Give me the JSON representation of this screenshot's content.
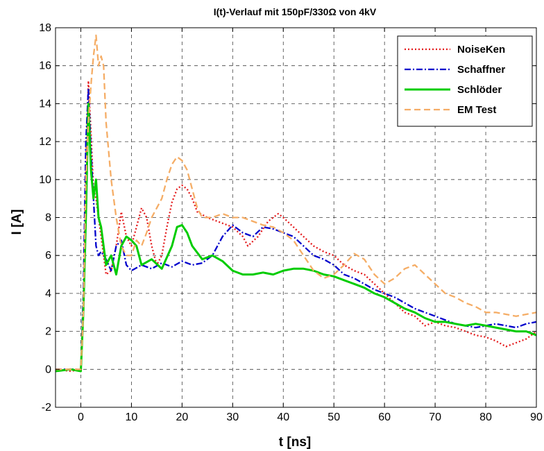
{
  "chart_data": {
    "type": "line",
    "title": "I(t)-Verlauf mit 150pF/330Ω  von 4kV",
    "xlabel": "t [ns]",
    "ylabel": "I [A]",
    "xlim": [
      -5,
      90
    ],
    "ylim": [
      -2,
      18
    ],
    "xticks": [
      0,
      10,
      20,
      30,
      40,
      50,
      60,
      70,
      80,
      90
    ],
    "yticks": [
      -2,
      0,
      2,
      4,
      6,
      8,
      10,
      12,
      14,
      16,
      18
    ],
    "grid": true,
    "legend_position": "top-right",
    "series": [
      {
        "name": "NoiseKen",
        "color": "#e41a1c",
        "style": "dotted",
        "points": [
          [
            -5,
            0
          ],
          [
            -2,
            -0.1
          ],
          [
            0,
            0
          ],
          [
            0.5,
            3
          ],
          [
            1,
            11
          ],
          [
            1.5,
            15.2
          ],
          [
            2,
            12.5
          ],
          [
            2.5,
            9.5
          ],
          [
            3,
            9
          ],
          [
            4,
            7
          ],
          [
            5,
            5
          ],
          [
            6,
            5.2
          ],
          [
            7,
            6.5
          ],
          [
            8,
            8.3
          ],
          [
            9,
            7
          ],
          [
            10,
            6.5
          ],
          [
            11,
            7.5
          ],
          [
            12,
            8.5
          ],
          [
            13,
            8
          ],
          [
            14,
            6.5
          ],
          [
            15,
            5.5
          ],
          [
            16,
            6
          ],
          [
            17,
            7.5
          ],
          [
            18,
            8.8
          ],
          [
            19,
            9.5
          ],
          [
            20,
            9.7
          ],
          [
            21,
            9.5
          ],
          [
            22,
            9
          ],
          [
            23,
            8.3
          ],
          [
            25,
            8
          ],
          [
            27,
            7.8
          ],
          [
            30,
            7.5
          ],
          [
            32,
            7
          ],
          [
            33,
            6.5
          ],
          [
            35,
            7
          ],
          [
            37,
            7.8
          ],
          [
            39,
            8.2
          ],
          [
            40,
            8
          ],
          [
            42,
            7.5
          ],
          [
            44,
            7
          ],
          [
            46,
            6.5
          ],
          [
            48,
            6.2
          ],
          [
            50,
            6
          ],
          [
            52,
            5.5
          ],
          [
            54,
            5.2
          ],
          [
            56,
            5
          ],
          [
            58,
            4.5
          ],
          [
            60,
            4
          ],
          [
            62,
            3.5
          ],
          [
            64,
            3
          ],
          [
            66,
            2.8
          ],
          [
            68,
            2.3
          ],
          [
            70,
            2.5
          ],
          [
            72,
            2.3
          ],
          [
            74,
            2.2
          ],
          [
            76,
            2
          ],
          [
            78,
            1.8
          ],
          [
            80,
            1.7
          ],
          [
            82,
            1.5
          ],
          [
            84,
            1.2
          ],
          [
            86,
            1.4
          ],
          [
            88,
            1.6
          ],
          [
            90,
            2
          ]
        ]
      },
      {
        "name": "Schaffner",
        "color": "#0000cc",
        "style": "dashdot",
        "points": [
          [
            -5,
            0
          ],
          [
            -2,
            0
          ],
          [
            0,
            0
          ],
          [
            0.5,
            4
          ],
          [
            1,
            12
          ],
          [
            1.5,
            14.8
          ],
          [
            2,
            11.5
          ],
          [
            2.5,
            9
          ],
          [
            3,
            6.5
          ],
          [
            3.5,
            6
          ],
          [
            4,
            6.2
          ],
          [
            5,
            5.8
          ],
          [
            6,
            5.2
          ],
          [
            7,
            6.5
          ],
          [
            8,
            6.8
          ],
          [
            9,
            5.5
          ],
          [
            10,
            5.2
          ],
          [
            12,
            5.5
          ],
          [
            14,
            5.3
          ],
          [
            16,
            5.6
          ],
          [
            18,
            5.4
          ],
          [
            20,
            5.7
          ],
          [
            22,
            5.5
          ],
          [
            24,
            5.6
          ],
          [
            26,
            6
          ],
          [
            28,
            7
          ],
          [
            30,
            7.6
          ],
          [
            32,
            7.2
          ],
          [
            34,
            7
          ],
          [
            36,
            7.5
          ],
          [
            38,
            7.4
          ],
          [
            40,
            7.2
          ],
          [
            42,
            7
          ],
          [
            44,
            6.5
          ],
          [
            46,
            6
          ],
          [
            48,
            5.8
          ],
          [
            50,
            5.5
          ],
          [
            52,
            5
          ],
          [
            54,
            4.8
          ],
          [
            56,
            4.5
          ],
          [
            58,
            4.2
          ],
          [
            60,
            4
          ],
          [
            62,
            3.8
          ],
          [
            64,
            3.5
          ],
          [
            66,
            3.2
          ],
          [
            68,
            3
          ],
          [
            70,
            2.8
          ],
          [
            72,
            2.6
          ],
          [
            74,
            2.4
          ],
          [
            76,
            2.3
          ],
          [
            78,
            2.2
          ],
          [
            80,
            2.3
          ],
          [
            82,
            2.4
          ],
          [
            84,
            2.3
          ],
          [
            86,
            2.2
          ],
          [
            88,
            2.4
          ],
          [
            90,
            2.5
          ]
        ]
      },
      {
        "name": "Schlöder",
        "color": "#00cc00",
        "style": "solid",
        "points": [
          [
            -5,
            -0.1
          ],
          [
            -2,
            0
          ],
          [
            0,
            -0.1
          ],
          [
            0.5,
            3
          ],
          [
            1,
            8
          ],
          [
            1.5,
            14
          ],
          [
            2,
            10.5
          ],
          [
            2.5,
            9
          ],
          [
            3,
            10
          ],
          [
            3.5,
            8
          ],
          [
            4,
            7.5
          ],
          [
            5,
            5.5
          ],
          [
            6,
            6
          ],
          [
            7,
            5
          ],
          [
            8,
            6.5
          ],
          [
            9,
            7
          ],
          [
            10,
            6.8
          ],
          [
            11,
            6.5
          ],
          [
            12,
            5.5
          ],
          [
            14,
            5.8
          ],
          [
            16,
            5.3
          ],
          [
            18,
            6.5
          ],
          [
            19,
            7.5
          ],
          [
            20,
            7.6
          ],
          [
            21,
            7.2
          ],
          [
            22,
            6.5
          ],
          [
            24,
            5.8
          ],
          [
            26,
            6
          ],
          [
            28,
            5.7
          ],
          [
            30,
            5.2
          ],
          [
            32,
            5
          ],
          [
            34,
            5
          ],
          [
            36,
            5.1
          ],
          [
            38,
            5
          ],
          [
            40,
            5.2
          ],
          [
            42,
            5.3
          ],
          [
            44,
            5.3
          ],
          [
            46,
            5.2
          ],
          [
            48,
            5
          ],
          [
            50,
            4.9
          ],
          [
            52,
            4.7
          ],
          [
            54,
            4.5
          ],
          [
            56,
            4.3
          ],
          [
            58,
            4
          ],
          [
            60,
            3.8
          ],
          [
            62,
            3.5
          ],
          [
            64,
            3.2
          ],
          [
            66,
            3
          ],
          [
            68,
            2.7
          ],
          [
            70,
            2.5
          ],
          [
            72,
            2.5
          ],
          [
            74,
            2.4
          ],
          [
            76,
            2.3
          ],
          [
            78,
            2.4
          ],
          [
            80,
            2.3
          ],
          [
            82,
            2.2
          ],
          [
            84,
            2.1
          ],
          [
            86,
            2
          ],
          [
            88,
            2
          ],
          [
            90,
            1.8
          ]
        ]
      },
      {
        "name": "EM Test",
        "color": "#f5ad66",
        "style": "dashed",
        "points": [
          [
            -5,
            0
          ],
          [
            -2,
            0
          ],
          [
            0,
            0
          ],
          [
            0.5,
            3
          ],
          [
            1,
            10
          ],
          [
            1.5,
            13
          ],
          [
            2,
            15
          ],
          [
            2.5,
            16.5
          ],
          [
            3,
            17.6
          ],
          [
            3.5,
            16
          ],
          [
            4,
            16.5
          ],
          [
            4.5,
            16
          ],
          [
            5,
            13
          ],
          [
            6,
            10
          ],
          [
            7,
            8
          ],
          [
            8,
            6.5
          ],
          [
            9,
            6
          ],
          [
            10,
            6
          ],
          [
            11,
            6.8
          ],
          [
            12,
            6.5
          ],
          [
            13,
            7.2
          ],
          [
            14,
            8
          ],
          [
            15,
            8.5
          ],
          [
            16,
            9
          ],
          [
            17,
            10
          ],
          [
            18,
            10.8
          ],
          [
            19,
            11.2
          ],
          [
            20,
            11
          ],
          [
            21,
            10.5
          ],
          [
            22,
            9.5
          ],
          [
            23,
            8.5
          ],
          [
            24,
            8
          ],
          [
            26,
            8
          ],
          [
            28,
            8.2
          ],
          [
            30,
            8
          ],
          [
            32,
            8
          ],
          [
            34,
            7.8
          ],
          [
            36,
            7.6
          ],
          [
            38,
            7.5
          ],
          [
            40,
            7.2
          ],
          [
            42,
            6.8
          ],
          [
            44,
            6
          ],
          [
            46,
            5.2
          ],
          [
            48,
            4.8
          ],
          [
            50,
            5
          ],
          [
            52,
            5.5
          ],
          [
            54,
            6.1
          ],
          [
            56,
            5.8
          ],
          [
            58,
            5
          ],
          [
            60,
            4.5
          ],
          [
            62,
            4.8
          ],
          [
            64,
            5.3
          ],
          [
            66,
            5.5
          ],
          [
            68,
            5
          ],
          [
            70,
            4.5
          ],
          [
            72,
            4
          ],
          [
            74,
            3.8
          ],
          [
            76,
            3.5
          ],
          [
            78,
            3.3
          ],
          [
            80,
            3
          ],
          [
            82,
            3
          ],
          [
            84,
            2.9
          ],
          [
            86,
            2.8
          ],
          [
            88,
            2.9
          ],
          [
            90,
            3
          ]
        ]
      }
    ]
  }
}
